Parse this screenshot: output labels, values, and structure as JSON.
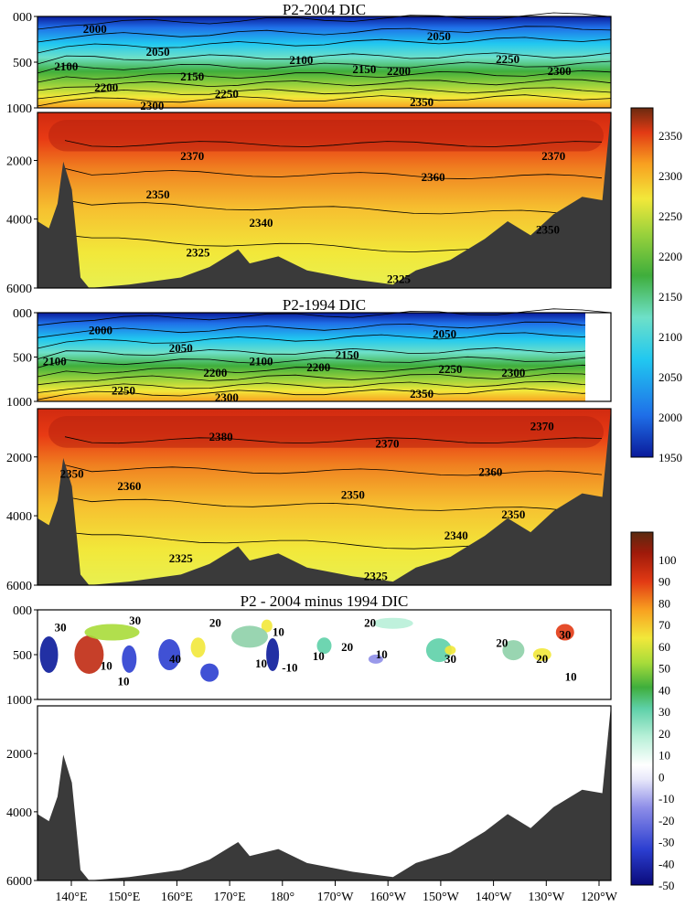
{
  "panels": [
    {
      "id": "p2004",
      "title": "P2-2004 DIC",
      "upper_yticks": [
        "000",
        "500",
        "1000"
      ],
      "lower_yticks": [
        "2000",
        "4000",
        "6000"
      ],
      "labels_upper": [
        "2000",
        "2050",
        "2050",
        "2100",
        "2100",
        "2150",
        "2150",
        "2200",
        "2200",
        "2250",
        "2250",
        "2300",
        "2300",
        "2350"
      ],
      "labels_lower": [
        "2370",
        "2370",
        "2360",
        "2350",
        "2350",
        "2340",
        "2325",
        "2325"
      ]
    },
    {
      "id": "p1994",
      "title": "P2-1994 DIC",
      "upper_yticks": [
        "000",
        "500",
        "1000"
      ],
      "lower_yticks": [
        "2000",
        "4000",
        "6000"
      ],
      "labels_upper": [
        "2000",
        "2050",
        "2050",
        "2100",
        "2100",
        "2150",
        "2200",
        "2200",
        "2250",
        "2250",
        "2300",
        "2300",
        "2350"
      ],
      "labels_lower": [
        "2380",
        "2370",
        "2370",
        "2360",
        "2360",
        "2350",
        "2350",
        "2350",
        "2340",
        "2325",
        "2325"
      ]
    },
    {
      "id": "pdiff",
      "title": "P2 - 2004 minus 1994 DIC",
      "upper_yticks": [
        "000",
        "500",
        "1000"
      ],
      "lower_yticks": [
        "2000",
        "4000",
        "6000"
      ],
      "labels_upper": [
        "30",
        "30",
        "20",
        "10",
        "40",
        "10",
        "20",
        "10",
        "10",
        "10",
        "20",
        "30",
        "20",
        "20",
        "30",
        "10",
        "10",
        "-10"
      ],
      "labels_lower": []
    }
  ],
  "x_ticks": [
    "140°E",
    "150°E",
    "160°E",
    "170°E",
    "180°",
    "170°W",
    "160°W",
    "150°W",
    "140°W",
    "130°W",
    "120°W"
  ],
  "colorbar_dic": {
    "ticks": [
      "2350",
      "2300",
      "2250",
      "2200",
      "2150",
      "2100",
      "2050",
      "2000",
      "1950"
    ],
    "colors": [
      "#0a1a9a",
      "#1f6fe8",
      "#21c8f0",
      "#6ee0c8",
      "#3fae3c",
      "#9ad23c",
      "#f2e83a",
      "#f8a020",
      "#e23a14",
      "#6a2a10"
    ]
  },
  "colorbar_diff": {
    "ticks": [
      "100",
      "90",
      "80",
      "70",
      "60",
      "50",
      "40",
      "30",
      "20",
      "10",
      "0",
      "-10",
      "-20",
      "-30",
      "-40",
      "-50"
    ],
    "colors": [
      "#0a0a7a",
      "#2b3ed0",
      "#8e8ee8",
      "#e8e8fa",
      "#ffffff",
      "#b8f0d8",
      "#5ed0a8",
      "#3fae3c",
      "#a8dc3a",
      "#f2e83a",
      "#f8a020",
      "#e23a14",
      "#a01a0a",
      "#5a2a10"
    ]
  },
  "chart_data": {
    "type": "heatmap",
    "charts": [
      {
        "title": "P2-2004 DIC",
        "x_range": [
          "135°E",
          "119°W"
        ],
        "y_range_upper": [
          0,
          1000
        ],
        "y_range_lower": [
          1000,
          6000
        ],
        "colorbar_range": [
          1950,
          2400
        ]
      },
      {
        "title": "P2-1994 DIC",
        "x_range": [
          "135°E",
          "119°W"
        ],
        "y_range_upper": [
          0,
          1000
        ],
        "y_range_lower": [
          1000,
          6000
        ],
        "colorbar_range": [
          1950,
          2400
        ]
      },
      {
        "title": "P2 - 2004 minus 1994 DIC",
        "x_range": [
          "135°E",
          "119°W"
        ],
        "y_range_upper": [
          0,
          1000
        ],
        "y_range_lower": [
          1000,
          6000
        ],
        "colorbar_range": [
          -50,
          100
        ]
      }
    ]
  }
}
